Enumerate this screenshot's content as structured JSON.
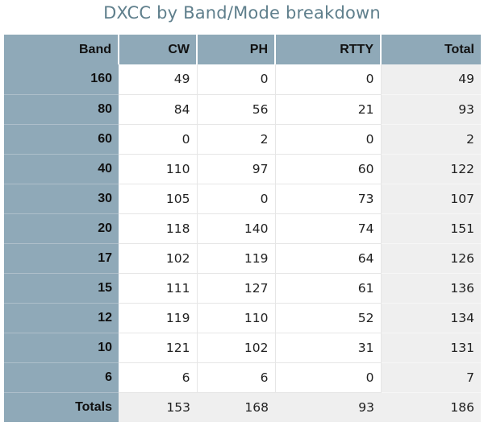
{
  "title": "DXCC by Band/Mode breakdown",
  "headers": {
    "band": "Band",
    "cw": "CW",
    "ph": "PH",
    "rtty": "RTTY",
    "total": "Total"
  },
  "rows": [
    {
      "band": "160",
      "cw": "49",
      "ph": "0",
      "rtty": "0",
      "total": "49"
    },
    {
      "band": "80",
      "cw": "84",
      "ph": "56",
      "rtty": "21",
      "total": "93"
    },
    {
      "band": "60",
      "cw": "0",
      "ph": "2",
      "rtty": "0",
      "total": "2"
    },
    {
      "band": "40",
      "cw": "110",
      "ph": "97",
      "rtty": "60",
      "total": "122"
    },
    {
      "band": "30",
      "cw": "105",
      "ph": "0",
      "rtty": "73",
      "total": "107"
    },
    {
      "band": "20",
      "cw": "118",
      "ph": "140",
      "rtty": "74",
      "total": "151"
    },
    {
      "band": "17",
      "cw": "102",
      "ph": "119",
      "rtty": "64",
      "total": "126"
    },
    {
      "band": "15",
      "cw": "111",
      "ph": "127",
      "rtty": "61",
      "total": "136"
    },
    {
      "band": "12",
      "cw": "119",
      "ph": "110",
      "rtty": "52",
      "total": "134"
    },
    {
      "band": "10",
      "cw": "121",
      "ph": "102",
      "rtty": "31",
      "total": "131"
    },
    {
      "band": "6",
      "cw": "6",
      "ph": "6",
      "rtty": "0",
      "total": "7"
    }
  ],
  "totals": {
    "label": "Totals",
    "cw": "153",
    "ph": "168",
    "rtty": "93",
    "total": "186"
  }
}
